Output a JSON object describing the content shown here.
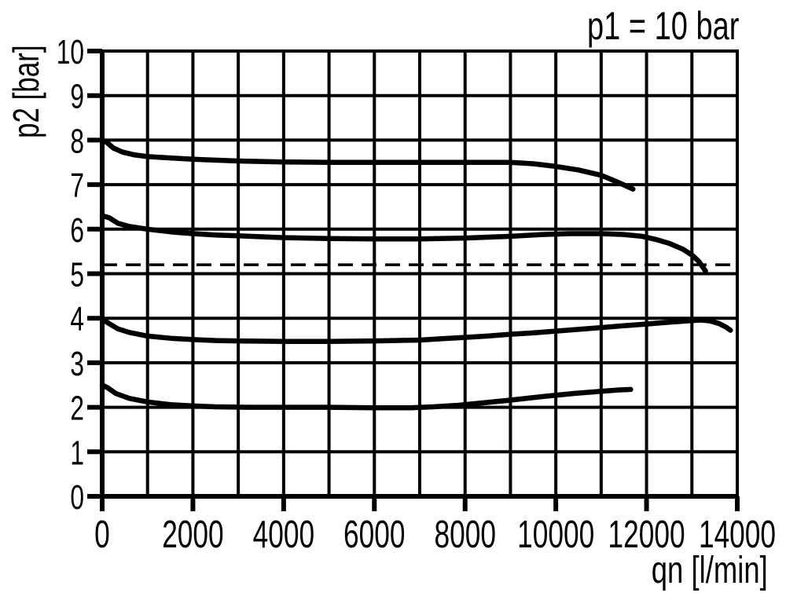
{
  "window": {
    "background": "#ffffff",
    "foreground": "#000000"
  },
  "chart_data": {
    "type": "line",
    "annotation": "p1 = 10 bar",
    "xlabel": "qn [l/min]",
    "ylabel": "p2 [bar]",
    "xlim": [
      0,
      14000
    ],
    "ylim": [
      0,
      10
    ],
    "x_grid_step": 1000,
    "y_grid_step": 1,
    "x_tick_labels": [
      "0",
      "2000",
      "4000",
      "6000",
      "8000",
      "10000",
      "12000",
      "14000"
    ],
    "y_tick_labels": [
      "0",
      "1",
      "2",
      "3",
      "4",
      "5",
      "6",
      "7",
      "8",
      "9",
      "10"
    ],
    "grid": true,
    "legend": "none",
    "line_color": "#000000",
    "grid_color": "#000000",
    "background": "#ffffff",
    "reference_line": {
      "p2": 5.2,
      "style": "dashed",
      "x_start": 0,
      "x_end": 14000
    },
    "series": [
      {
        "name": "curve starting at 8.0 bar",
        "points": [
          [
            0,
            8.0
          ],
          [
            100,
            7.95
          ],
          [
            250,
            7.82
          ],
          [
            450,
            7.73
          ],
          [
            700,
            7.67
          ],
          [
            1000,
            7.63
          ],
          [
            1500,
            7.6
          ],
          [
            2000,
            7.57
          ],
          [
            3000,
            7.53
          ],
          [
            4000,
            7.51
          ],
          [
            5000,
            7.5
          ],
          [
            6000,
            7.5
          ],
          [
            7000,
            7.5
          ],
          [
            8000,
            7.5
          ],
          [
            9000,
            7.5
          ],
          [
            9500,
            7.47
          ],
          [
            10000,
            7.41
          ],
          [
            10500,
            7.33
          ],
          [
            11000,
            7.21
          ],
          [
            11400,
            7.04
          ],
          [
            11700,
            6.9
          ]
        ]
      },
      {
        "name": "curve starting at 6.3 bar",
        "points": [
          [
            0,
            6.3
          ],
          [
            150,
            6.26
          ],
          [
            350,
            6.13
          ],
          [
            600,
            6.06
          ],
          [
            1000,
            6.0
          ],
          [
            1500,
            5.94
          ],
          [
            2000,
            5.9
          ],
          [
            2500,
            5.87
          ],
          [
            3000,
            5.85
          ],
          [
            4000,
            5.81
          ],
          [
            5000,
            5.79
          ],
          [
            6000,
            5.78
          ],
          [
            7000,
            5.78
          ],
          [
            8000,
            5.8
          ],
          [
            9000,
            5.84
          ],
          [
            9700,
            5.88
          ],
          [
            10300,
            5.9
          ],
          [
            11000,
            5.9
          ],
          [
            11500,
            5.88
          ],
          [
            11900,
            5.84
          ],
          [
            12200,
            5.77
          ],
          [
            12500,
            5.68
          ],
          [
            12800,
            5.55
          ],
          [
            13000,
            5.42
          ],
          [
            13150,
            5.28
          ],
          [
            13300,
            5.06
          ]
        ]
      },
      {
        "name": "curve starting at 4.0 bar",
        "points": [
          [
            0,
            3.98
          ],
          [
            150,
            3.88
          ],
          [
            350,
            3.76
          ],
          [
            600,
            3.68
          ],
          [
            1000,
            3.6
          ],
          [
            1500,
            3.55
          ],
          [
            2000,
            3.52
          ],
          [
            2500,
            3.5
          ],
          [
            3000,
            3.49
          ],
          [
            4000,
            3.48
          ],
          [
            5000,
            3.48
          ],
          [
            6000,
            3.49
          ],
          [
            7000,
            3.51
          ],
          [
            7500,
            3.54
          ],
          [
            8000,
            3.57
          ],
          [
            8500,
            3.6
          ],
          [
            9000,
            3.64
          ],
          [
            9500,
            3.67
          ],
          [
            10000,
            3.71
          ],
          [
            10500,
            3.75
          ],
          [
            11000,
            3.79
          ],
          [
            11500,
            3.83
          ],
          [
            12000,
            3.87
          ],
          [
            12500,
            3.91
          ],
          [
            12900,
            3.94
          ],
          [
            13200,
            3.96
          ],
          [
            13400,
            3.94
          ],
          [
            13600,
            3.88
          ],
          [
            13750,
            3.8
          ],
          [
            13850,
            3.73
          ]
        ]
      },
      {
        "name": "curve starting at 2.5 bar",
        "points": [
          [
            0,
            2.5
          ],
          [
            120,
            2.44
          ],
          [
            300,
            2.31
          ],
          [
            600,
            2.2
          ],
          [
            1000,
            2.12
          ],
          [
            1500,
            2.06
          ],
          [
            2000,
            2.03
          ],
          [
            2500,
            2.01
          ],
          [
            3200,
            2.0
          ],
          [
            4000,
            2.0
          ],
          [
            5000,
            2.0
          ],
          [
            6000,
            1.99
          ],
          [
            6800,
            1.99
          ],
          [
            7300,
            2.01
          ],
          [
            7800,
            2.04
          ],
          [
            8300,
            2.09
          ],
          [
            9000,
            2.16
          ],
          [
            9700,
            2.24
          ],
          [
            10400,
            2.31
          ],
          [
            11000,
            2.36
          ],
          [
            11400,
            2.39
          ],
          [
            11650,
            2.4
          ]
        ]
      }
    ]
  }
}
